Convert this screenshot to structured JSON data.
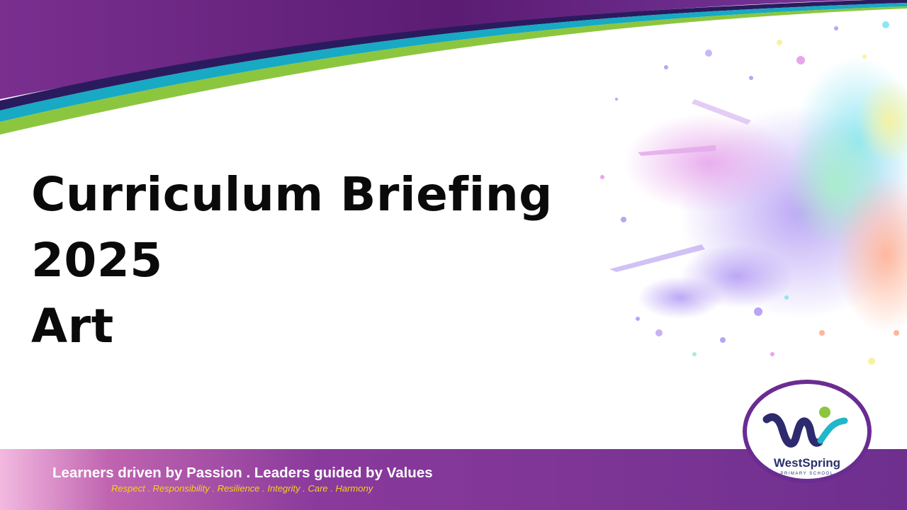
{
  "slide": {
    "title_lines": [
      "Curriculum Briefing",
      "2025",
      "Art"
    ]
  },
  "footer": {
    "motto": "Learners driven by Passion . Leaders guided by Values",
    "values": "Respect . Responsibility . Resilience . Integrity . Care . Harmony"
  },
  "logo": {
    "name": "WestSpring",
    "subtitle": "PRIMARY SCHOOL"
  },
  "colors": {
    "brand_purple": "#6b2c91",
    "navy": "#2a1b5e",
    "teal": "#18a9c4",
    "lime": "#8cc63f",
    "values_yellow": "#f4d21a"
  }
}
